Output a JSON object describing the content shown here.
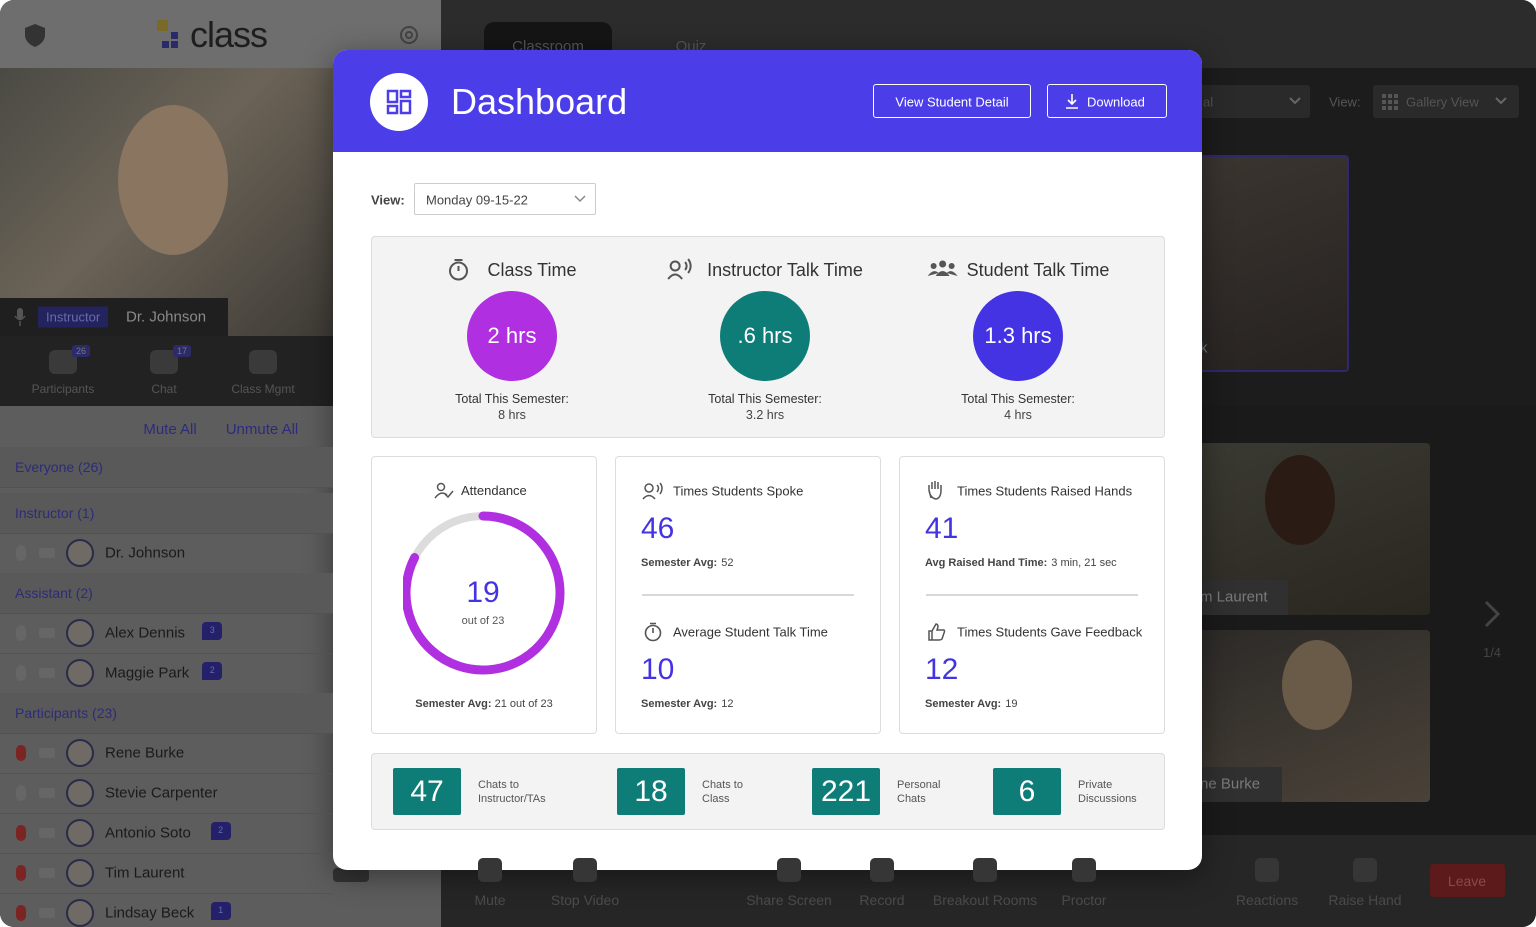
{
  "app": {
    "logo": "class",
    "tabs": [
      "Classroom",
      "Quiz"
    ],
    "instructor_video": {
      "role": "Instructor",
      "name": "Dr. Johnson"
    },
    "panel_tabs": [
      {
        "label": "Participants",
        "badge": 26
      },
      {
        "label": "Chat",
        "badge": 17
      },
      {
        "label": "Class Mgmt"
      }
    ],
    "mute_all": "Mute All",
    "unmute_all": "Unmute All",
    "sections": [
      {
        "title": "Everyone (26)"
      },
      {
        "title": "Instructor (1)",
        "members": [
          {
            "name": "Dr. Johnson"
          }
        ]
      },
      {
        "title": "Assistant (2)",
        "members": [
          {
            "name": "Alex Dennis",
            "badge": 3
          },
          {
            "name": "Maggie Park",
            "badge": 2
          }
        ]
      },
      {
        "title": "Participants (23)",
        "members": [
          {
            "name": "Rene Burke",
            "muted": true
          },
          {
            "name": "Stevie Carpenter"
          },
          {
            "name": "Antonio Soto",
            "muted": true,
            "badge": 2
          },
          {
            "name": "Tim Laurent",
            "muted": true
          },
          {
            "name": "Lindsay Beck",
            "muted": true,
            "badge": 1
          }
        ]
      }
    ],
    "layout_select": "al",
    "view_label": "View:",
    "view_select": "Gallery View",
    "tiles": [
      "k",
      "m Laurent",
      "ne Burke"
    ],
    "page": "1/4",
    "controls": [
      "Mute",
      "Stop Video",
      "Share Screen",
      "Record",
      "Breakout Rooms",
      "Proctor",
      "Reactions",
      "Raise Hand"
    ],
    "leave": "Leave"
  },
  "dashboard": {
    "title": "Dashboard",
    "buttons": {
      "detail": "View Student Detail",
      "download": "Download"
    },
    "view_label": "View:",
    "view_value": "Monday 09-15-22",
    "time_stats": [
      {
        "title": "Class Time",
        "value": "2 hrs",
        "color": "#b02fe0",
        "total_label": "Total This Semester:",
        "total": "8 hrs"
      },
      {
        "title": "Instructor Talk Time",
        "value": ".6 hrs",
        "color": "#0e7d78",
        "total_label": "Total This Semester:",
        "total": "3.2 hrs"
      },
      {
        "title": "Student Talk Time",
        "value": "1.3 hrs",
        "color": "#4333e2",
        "total_label": "Total This Semester:",
        "total": "4 hrs"
      }
    ],
    "attendance": {
      "title": "Attendance",
      "value": 19,
      "caption": "out of 23",
      "total": 23,
      "color": "#b02fe0",
      "avg_label": "Semester Avg:",
      "avg": "21 out of 23"
    },
    "metrics": [
      {
        "title": "Times Students Spoke",
        "value": 46,
        "note_label": "Semester Avg:",
        "note": 52
      },
      {
        "title": "Average Student Talk Time",
        "value": 10,
        "note_label": "Semester Avg:",
        "note": 12
      },
      {
        "title": "Times Students Raised Hands",
        "value": 41,
        "note_label": "Avg Raised Hand Time:",
        "note": "3 min, 21 sec"
      },
      {
        "title": "Times Students Gave Feedback",
        "value": 12,
        "note_label": "Semester Avg:",
        "note": 19
      }
    ],
    "chats": [
      {
        "value": 47,
        "label_lines": [
          "Chats to",
          "Instructor/TAs"
        ]
      },
      {
        "value": 18,
        "label_lines": [
          "Chats to",
          "Class"
        ]
      },
      {
        "value": 221,
        "label_lines": [
          "Personal",
          "Chats"
        ]
      },
      {
        "value": 6,
        "label_lines": [
          "Private",
          "Discussions"
        ]
      }
    ]
  }
}
